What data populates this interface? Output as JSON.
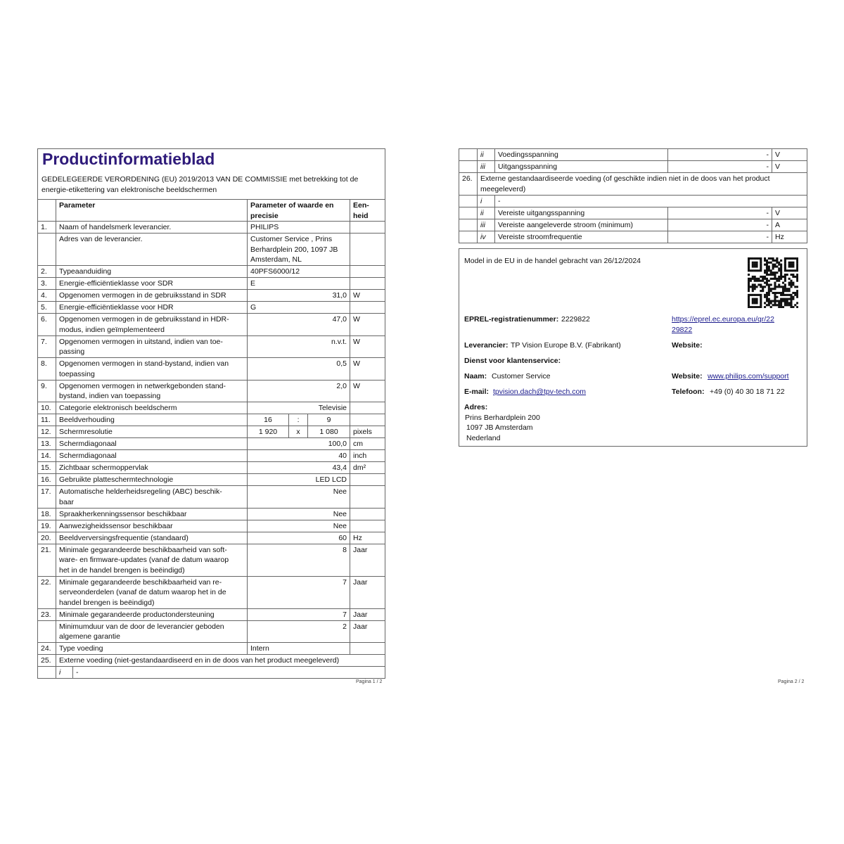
{
  "page1": {
    "title": "Productinformatieblad",
    "subtitle": "GEDELEGEERDE VERORDENING (EU) 2019/2013 VAN DE COMMISSIE met betrekking tot de\nenergie-etikettering van elektronische beeldschermen",
    "header": [
      "Parameter",
      "Parameter of waarde en\nprecisie",
      "Een-\nheid"
    ],
    "rows": [
      {
        "number": "1.",
        "parameter": "Naam of handelsmerk leverancier.",
        "value": "PHILIPS"
      },
      {
        "parameter": "Adres van de leverancier.",
        "value": "Customer Service , Prins\nBerhardplein 200, 1097 JB\nAmsterdam, NL"
      },
      {
        "number": "2.",
        "parameter": "Typeaanduiding",
        "value": "40PFS6000/12"
      },
      {
        "number": "3.",
        "parameter": "Energie-efficiëntieklasse voor SDR",
        "value": "E"
      },
      {
        "number": "4.",
        "parameter": "Opgenomen vermogen in de gebruiksstand in SDR",
        "value": "31,0",
        "unit": "W"
      },
      {
        "number": "5.",
        "parameter": "Energie-efficiëntieklasse voor HDR",
        "value": "G"
      },
      {
        "number": "6.",
        "parameter": "Opgenomen vermogen in de gebruiksstand in HDR-\nmodus, indien geïmplementeerd",
        "value": "47,0",
        "unit": "W"
      },
      {
        "number": "7.",
        "parameter": "Opgenomen vermogen in uitstand, indien van toe-\npassing",
        "value": "n.v.t.",
        "unit": "W"
      },
      {
        "number": "8.",
        "parameter": "Opgenomen vermogen in stand-bystand, indien van\ntoepassing",
        "value": "0,5",
        "unit": "W"
      },
      {
        "number": "9.",
        "parameter": "Opgenomen vermogen in netwerkgebonden stand-\nbystand, indien van toepassing",
        "value": "2,0",
        "unit": "W"
      },
      {
        "number": "10.",
        "parameter": "Categorie elektronisch beeldscherm",
        "value": "Televisie"
      },
      {
        "number": "11.",
        "parameter": "Beeldverhouding",
        "value": [
          "16",
          ":",
          "9"
        ]
      },
      {
        "number": "12.",
        "parameter": "Schermresolutie",
        "value": [
          "1 920",
          "x",
          "1 080"
        ],
        "unit": "pixels"
      },
      {
        "number": "13.",
        "parameter": "Schermdiagonaal",
        "value": "100,0",
        "unit": "cm"
      },
      {
        "number": "14.",
        "parameter": "Schermdiagonaal",
        "value": "40",
        "unit": "inch"
      },
      {
        "number": "15.",
        "parameter": "Zichtbaar schermoppervlak",
        "value": "43,4",
        "unit": "dm²"
      },
      {
        "number": "16.",
        "parameter": "Gebruikte platteschermtechnologie",
        "value": "LED LCD"
      },
      {
        "number": "17.",
        "parameter": "Automatische helderheidsregeling (ABC) beschik-\nbaar",
        "value": "Nee"
      },
      {
        "number": "18.",
        "parameter": "Spraakherkenningssensor beschikbaar",
        "value": "Nee"
      },
      {
        "number": "19.",
        "parameter": "Aanwezigheidssensor beschikbaar",
        "value": "Nee"
      },
      {
        "number": "20.",
        "parameter": "Beeldverversingsfrequentie (standaard)",
        "value": "60",
        "unit": "Hz"
      },
      {
        "number": "21.",
        "parameter": "Minimale gegarandeerde beschikbaarheid van soft-\nware- en firmware-updates (vanaf de datum waarop\nhet in de handel brengen is beëindigd)",
        "value": "8",
        "unit": "Jaar"
      },
      {
        "number": "22.",
        "parameter": "Minimale gegarandeerde beschikbaarheid van re-\nserveonderdelen (vanaf de datum waarop het in de\nhandel brengen is beëindigd)",
        "value": "7",
        "unit": "Jaar"
      },
      {
        "number": "23.",
        "parameter": "Minimale gegarandeerde productondersteuning",
        "value": "7",
        "unit": "Jaar"
      },
      {
        "parameter": "Minimumduur van de door de leverancier geboden\nalgemene garantie",
        "value": "2",
        "unit": "Jaar"
      },
      {
        "number": "24.",
        "parameter": "Type voeding",
        "value": "Intern"
      },
      {
        "number": "25.",
        "parameter": "Externe voeding (niet-gestandaardiseerd en in de doos van het product meegeleverd)"
      },
      {
        "sub": "i",
        "parameter": "-"
      }
    ],
    "footer": "Pagina 1 / 2"
  },
  "page2": {
    "rows": [
      {
        "sub": "ii",
        "parameter": "Voedingsspanning",
        "value": "-",
        "unit": "V"
      },
      {
        "sub": "iii",
        "parameter": "Uitgangsspanning",
        "value": "-",
        "unit": "V"
      },
      {
        "number": "26.",
        "parameter": "Externe gestandaardiseerde voeding (of geschikte indien niet in de doos van het product\nmeegeleverd)"
      },
      {
        "sub": "i",
        "parameter": "-"
      },
      {
        "sub": "ii",
        "parameter": "Vereiste uitgangsspanning",
        "value": "-",
        "unit": "V"
      },
      {
        "sub": "iii",
        "parameter": "Vereiste aangeleverde stroom (minimum)",
        "value": "-",
        "unit": "A"
      },
      {
        "sub": "iv",
        "parameter": "Vereiste stroomfrequentie",
        "value": "-",
        "unit": "Hz"
      }
    ],
    "info": {
      "intro": "Model in de EU in de handel gebracht van 26/12/2024",
      "eprel_label": "EPREL-registratienummer:",
      "eprel_number": "2229822",
      "eprel_link": "https://eprel.ec.europa.eu/qr/22\n29822",
      "supplier_label": "Leverancier:",
      "supplier": "TP Vision Europe B.V. (Fabrikant)",
      "supplier_website_label": "Website:",
      "service_heading": "Dienst voor klantenservice:",
      "name_label": "Naam:",
      "name": "Customer Service",
      "service_website_label": "Website:",
      "service_website": "www.philips.com/support",
      "email_label": "E-mail:",
      "email": "tpvision.dach@tpv-tech.com",
      "phone_label": "Telefoon:",
      "phone": "+49 (0) 40 30 18 71 22",
      "address_label": "Adres:",
      "address_lines": [
        "Prins Berhardplein 200",
        "1097 JB Amsterdam",
        "Nederland"
      ]
    },
    "footer": "Pagina 2 / 2"
  }
}
